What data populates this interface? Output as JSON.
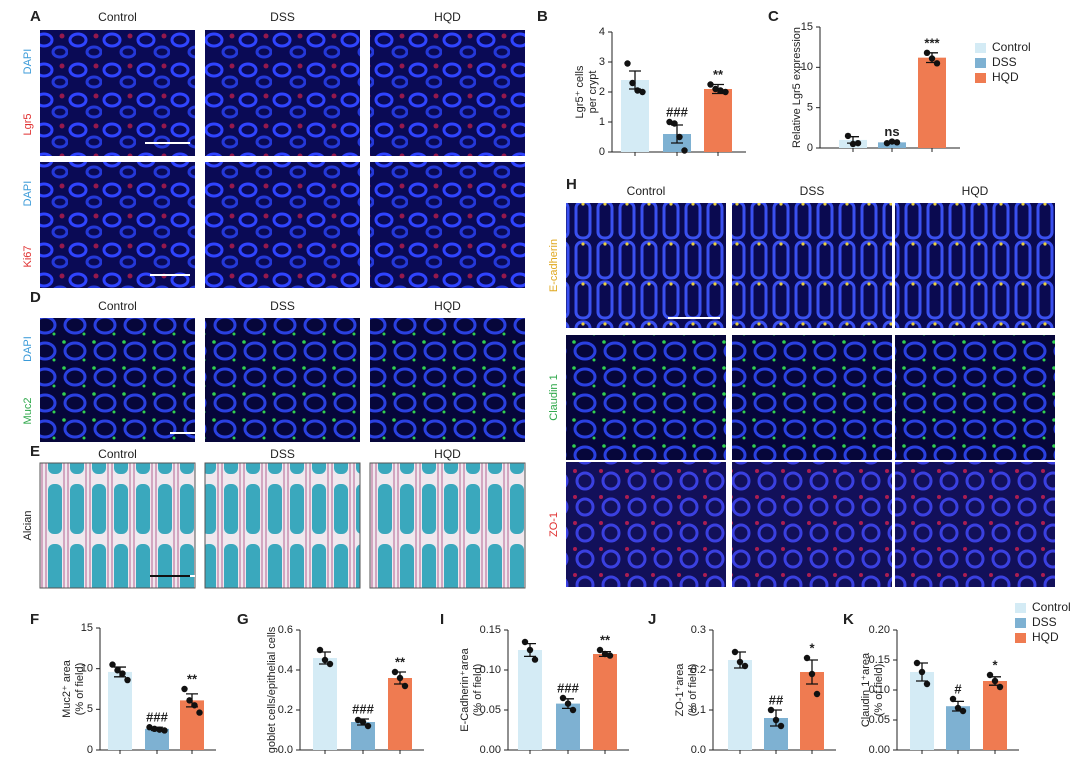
{
  "figure": {
    "panels": [
      "A",
      "B",
      "C",
      "D",
      "E",
      "F",
      "G",
      "H",
      "I",
      "J",
      "K"
    ],
    "images": {
      "A": {
        "columns": [
          "Control",
          "DSS",
          "HQD"
        ],
        "rows": [
          [
            {
              "text": "DAPI",
              "color": "#3a9ad8"
            },
            {
              "text": "Lgr5",
              "color": "#e03030"
            }
          ],
          [
            {
              "text": "DAPI",
              "color": "#3a9ad8"
            },
            {
              "text": "Ki67",
              "color": "#e03030"
            }
          ]
        ]
      },
      "D": {
        "columns": [
          "Control",
          "DSS",
          "HQD"
        ],
        "rows": [
          [
            {
              "text": "DAPI",
              "color": "#3a9ad8"
            },
            {
              "text": "Muc2",
              "color": "#2ea84a"
            }
          ]
        ]
      },
      "E": {
        "columns": [
          "Control",
          "DSS",
          "HQD"
        ],
        "rows": [
          [
            {
              "text": "Alcian",
              "color": "#222222"
            }
          ]
        ]
      },
      "H": {
        "columns": [
          "Control",
          "DSS",
          "HQD"
        ],
        "rows": [
          [
            {
              "text": "E-cadherin",
              "color": "#e0a820"
            }
          ],
          [
            {
              "text": "Claudin 1",
              "color": "#2ea84a"
            }
          ],
          [
            {
              "text": "ZO-1",
              "color": "#e03030"
            }
          ]
        ]
      }
    }
  },
  "chart_data": [
    {
      "type": "bar",
      "ylabel": [
        "Lgr5⁺ cells",
        "per crypt"
      ],
      "colors": [
        "#d4ebf5",
        "#7eb1d2",
        "#ef7b51"
      ],
      "values": [
        2.4,
        0.6,
        2.1
      ],
      "errors": [
        0.3,
        0.3,
        0.15
      ],
      "points": [
        [
          2.95,
          2.3,
          2.05,
          2.0
        ],
        [
          1.0,
          0.95,
          0.5,
          0.05
        ],
        [
          2.25,
          2.1,
          2.05,
          2.0
        ]
      ],
      "annotations": [
        null,
        "###",
        "**"
      ],
      "ylim": [
        0,
        4
      ],
      "yticks": [
        0,
        1,
        2,
        3,
        4
      ]
    },
    {
      "type": "bar",
      "ylabel": "Relative Lgr5 expression",
      "colors": [
        "#d4ebf5",
        "#7eb1d2",
        "#ef7b51"
      ],
      "values": [
        1.0,
        0.7,
        11.2
      ],
      "errors": [
        0.4,
        0.1,
        0.6
      ],
      "points": [
        [
          1.5,
          0.5,
          0.6
        ],
        [
          0.6,
          0.8,
          0.7
        ],
        [
          11.8,
          11.1,
          10.5
        ]
      ],
      "annotations": [
        null,
        "ns",
        "***"
      ],
      "ylim": [
        0,
        15
      ],
      "yticks": [
        0,
        5,
        10,
        15
      ],
      "legend": [
        "Control",
        "DSS",
        "HQD"
      ]
    },
    {
      "type": "bar",
      "ylabel": [
        "Muc2⁺ area",
        "(% of field)"
      ],
      "colors": [
        "#d4ebf5",
        "#7eb1d2",
        "#ef7b51"
      ],
      "values": [
        9.6,
        2.6,
        6.1
      ],
      "errors": [
        0.6,
        0.2,
        0.8
      ],
      "points": [
        [
          10.5,
          9.8,
          9.4,
          8.6
        ],
        [
          2.8,
          2.6,
          2.5,
          2.4
        ],
        [
          7.5,
          6.1,
          5.5,
          4.6
        ]
      ],
      "annotations": [
        null,
        "###",
        "**"
      ],
      "ylim": [
        0,
        15
      ],
      "yticks": [
        0,
        5,
        10,
        15
      ]
    },
    {
      "type": "bar",
      "ylabel": "goblet cells/epithelial cells",
      "colors": [
        "#d4ebf5",
        "#7eb1d2",
        "#ef7b51"
      ],
      "values": [
        0.46,
        0.14,
        0.36
      ],
      "errors": [
        0.03,
        0.015,
        0.03
      ],
      "points": [
        [
          0.5,
          0.45,
          0.43
        ],
        [
          0.15,
          0.14,
          0.12
        ],
        [
          0.39,
          0.36,
          0.32
        ]
      ],
      "annotations": [
        null,
        "###",
        "**"
      ],
      "ylim": [
        0,
        0.6
      ],
      "yticks": [
        {
          "value": 0,
          "label": "0.0"
        },
        0.2,
        0.4,
        0.6
      ]
    },
    {
      "type": "bar",
      "ylabel": [
        "E-Cadherin⁺area",
        "(% of field)"
      ],
      "colors": [
        "#d4ebf5",
        "#7eb1d2",
        "#ef7b51"
      ],
      "values": [
        0.125,
        0.058,
        0.12
      ],
      "errors": [
        0.008,
        0.006,
        0.003
      ],
      "points": [
        [
          0.135,
          0.125,
          0.113
        ],
        [
          0.065,
          0.058,
          0.05
        ],
        [
          0.125,
          0.12,
          0.118
        ]
      ],
      "annotations": [
        null,
        "###",
        "**"
      ],
      "ylim": [
        0,
        0.15
      ],
      "yticks": [
        {
          "value": 0,
          "label": "0.00"
        },
        0.05,
        {
          "value": 0.1,
          "label": "0.10"
        },
        0.15
      ]
    },
    {
      "type": "bar",
      "ylabel": [
        "ZO-1⁺area",
        "(% of field)"
      ],
      "colors": [
        "#d4ebf5",
        "#7eb1d2",
        "#ef7b51"
      ],
      "values": [
        0.225,
        0.08,
        0.195
      ],
      "errors": [
        0.02,
        0.02,
        0.03
      ],
      "points": [
        [
          0.245,
          0.22,
          0.21
        ],
        [
          0.1,
          0.075,
          0.06
        ],
        [
          0.23,
          0.19,
          0.14
        ]
      ],
      "annotations": [
        null,
        "##",
        "*"
      ],
      "ylim": [
        0,
        0.3
      ],
      "yticks": [
        {
          "value": 0,
          "label": "0.0"
        },
        0.1,
        0.2,
        0.3
      ]
    },
    {
      "type": "bar",
      "ylabel": [
        "Claudin 1⁺area",
        "(% of field)"
      ],
      "colors": [
        "#d4ebf5",
        "#7eb1d2",
        "#ef7b51"
      ],
      "values": [
        0.13,
        0.073,
        0.115
      ],
      "errors": [
        0.015,
        0.008,
        0.007
      ],
      "points": [
        [
          0.145,
          0.13,
          0.11
        ],
        [
          0.085,
          0.07,
          0.065
        ],
        [
          0.125,
          0.115,
          0.105
        ]
      ],
      "annotations": [
        null,
        "#",
        "*"
      ],
      "ylim": [
        0,
        0.2
      ],
      "yticks": [
        {
          "value": 0,
          "label": "0.00"
        },
        0.05,
        {
          "value": 0.1,
          "label": "0.10"
        },
        0.15,
        {
          "value": 0.2,
          "label": "0.20"
        }
      ],
      "legend": [
        "Control",
        "DSS",
        "HQD"
      ]
    }
  ]
}
